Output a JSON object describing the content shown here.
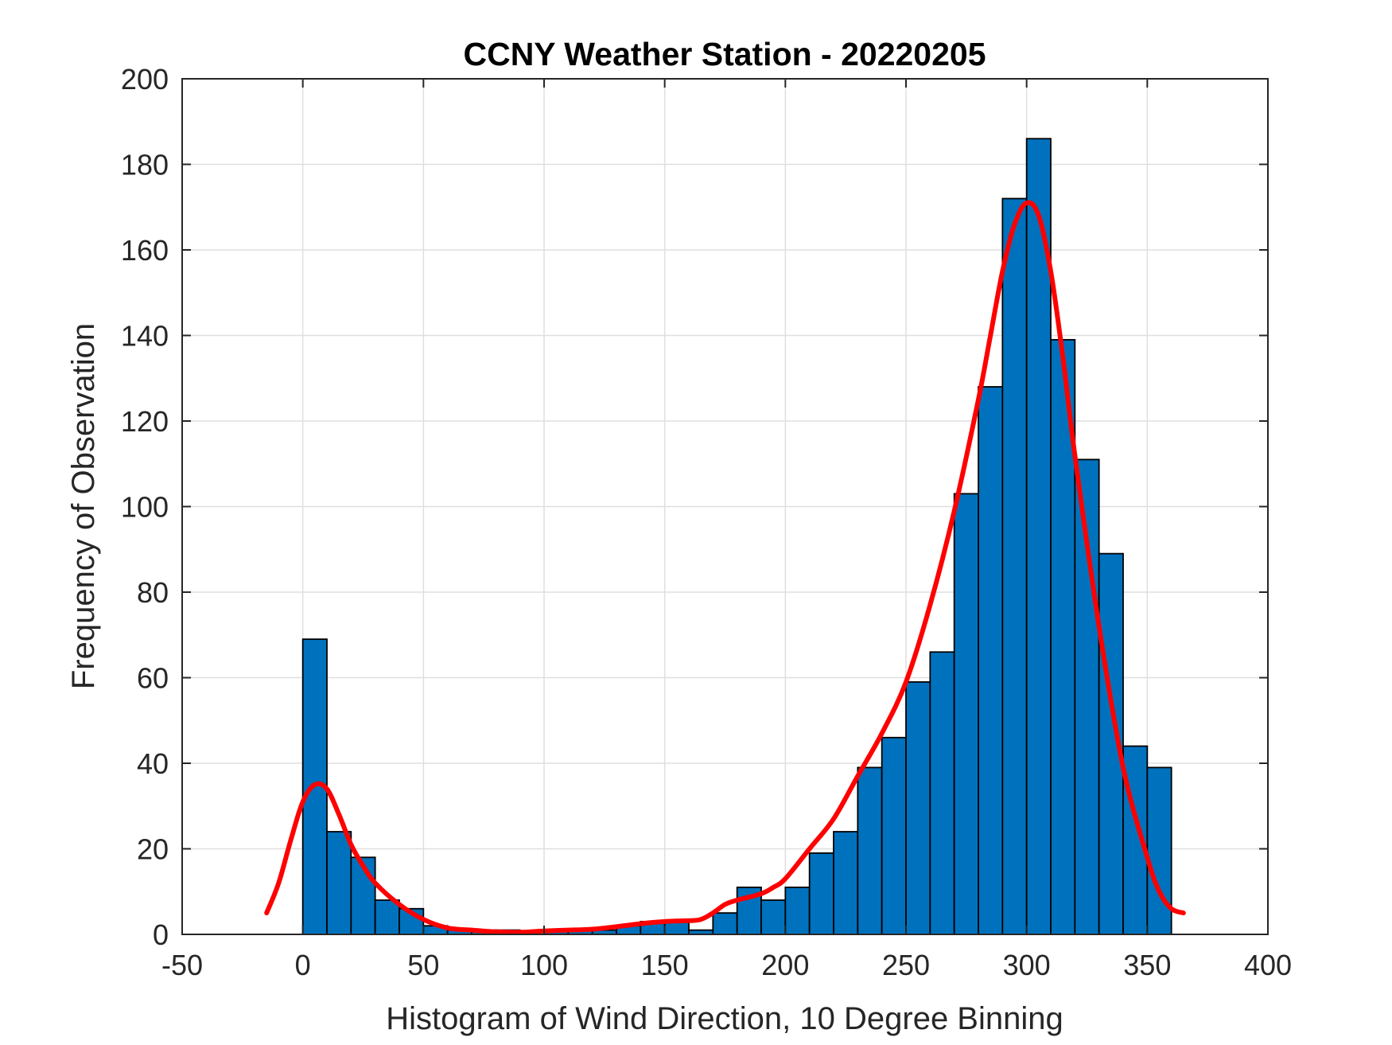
{
  "chart_data": {
    "type": "bar",
    "title": "CCNY Weather Station - 20220205",
    "xlabel": "Histogram of Wind Direction, 10 Degree Binning",
    "ylabel": "Frequency of Observation",
    "xlim": [
      -50,
      400
    ],
    "ylim": [
      0,
      200
    ],
    "xticks": [
      -50,
      0,
      50,
      100,
      150,
      200,
      250,
      300,
      350,
      400
    ],
    "yticks": [
      0,
      20,
      40,
      60,
      80,
      100,
      120,
      140,
      160,
      180,
      200
    ],
    "grid": true,
    "bin_width": 10,
    "bin_edges_start": [
      0,
      10,
      20,
      30,
      40,
      50,
      60,
      70,
      80,
      90,
      100,
      110,
      120,
      130,
      140,
      150,
      160,
      170,
      180,
      190,
      200,
      210,
      220,
      230,
      240,
      250,
      260,
      270,
      280,
      290,
      300,
      310,
      320,
      330,
      340,
      350
    ],
    "values": [
      69,
      24,
      18,
      8,
      6,
      2,
      1,
      1,
      1,
      0,
      1,
      1,
      1,
      2,
      3,
      3,
      1,
      5,
      11,
      8,
      11,
      19,
      24,
      39,
      46,
      59,
      66,
      103,
      128,
      172,
      186,
      139,
      111,
      89,
      44,
      39
    ],
    "bar_color": "#0072BD",
    "fit_line": {
      "color": "#FF0000",
      "x": [
        -15,
        -10,
        -5,
        0,
        5,
        10,
        15,
        20,
        25,
        30,
        40,
        50,
        60,
        70,
        80,
        90,
        100,
        110,
        120,
        130,
        140,
        150,
        160,
        165,
        170,
        175,
        180,
        190,
        195,
        200,
        210,
        220,
        230,
        240,
        250,
        260,
        270,
        280,
        285,
        290,
        295,
        300,
        305,
        310,
        315,
        320,
        330,
        340,
        350,
        355,
        360,
        365
      ],
      "y": [
        5,
        12,
        22,
        31,
        35,
        34,
        28,
        21,
        16,
        12,
        7,
        3.5,
        1.5,
        1,
        0.6,
        0.5,
        0.8,
        1,
        1.2,
        1.8,
        2.5,
        3,
        3.2,
        3.5,
        5,
        7,
        8,
        9.5,
        11,
        13,
        20,
        27,
        37,
        47,
        59,
        77,
        99,
        125,
        140,
        155,
        166,
        171,
        168,
        155,
        135,
        112,
        72,
        39,
        18,
        10,
        6,
        5
      ]
    }
  }
}
